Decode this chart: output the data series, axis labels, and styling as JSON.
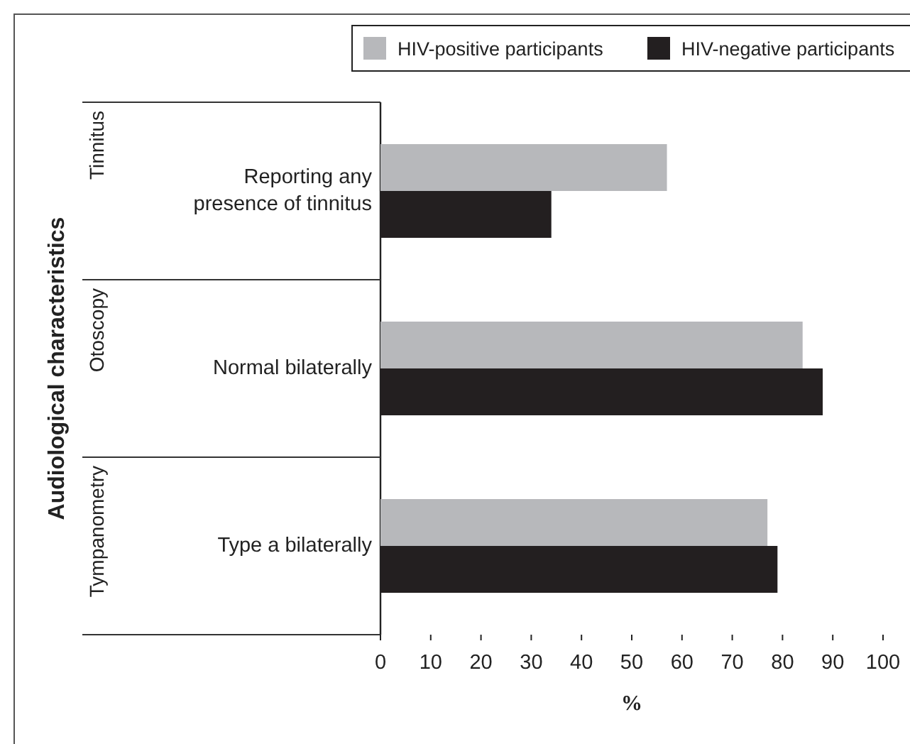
{
  "chart_data": {
    "type": "bar",
    "orientation": "horizontal",
    "xlabel": "%",
    "categories": [
      "Reporting any presence of tinnitus",
      "Normal bilaterally",
      "Type a bilaterally"
    ],
    "annotations": [
      "Audiological characteristics",
      "Tinnitus",
      "Otoscopy",
      "Tympanometry"
    ],
    "series": [
      {
        "name": "HIV-positive participants",
        "color": "#b7b8bb",
        "values": [
          57,
          84,
          77
        ]
      },
      {
        "name": "HIV-negative participants",
        "color": "#231f20",
        "values": [
          34,
          88,
          79
        ]
      }
    ],
    "xlim": [
      0,
      100
    ],
    "xticks": [
      0,
      10,
      20,
      30,
      40,
      50,
      60,
      70,
      80,
      90,
      100
    ],
    "legend": "top right",
    "grid": false
  }
}
